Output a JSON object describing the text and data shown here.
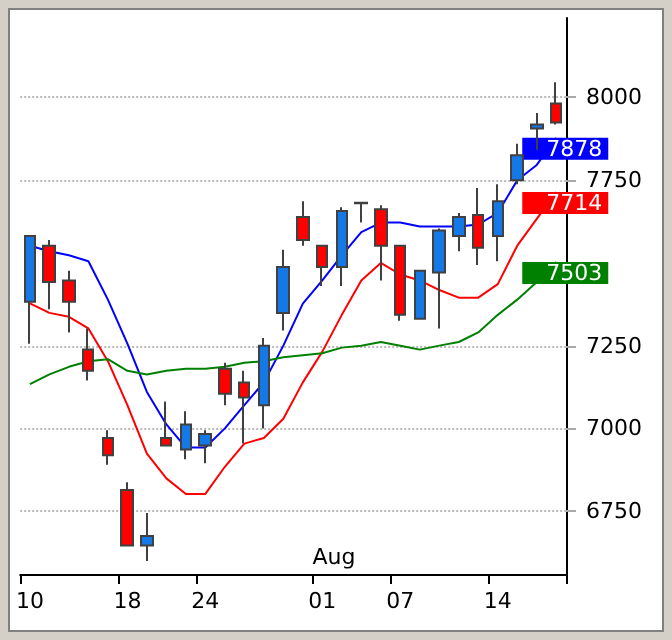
{
  "chart_data": {
    "type": "candlestick",
    "categories": [
      "10",
      null,
      null,
      null,
      null,
      "18",
      null,
      null,
      null,
      "24",
      null,
      null,
      null,
      null,
      null,
      "01",
      null,
      null,
      null,
      "07",
      null,
      null,
      null,
      null,
      "14",
      null,
      null,
      null
    ],
    "ohlc": [
      [
        7383,
        7581,
        7256,
        7581
      ],
      [
        7552,
        7569,
        7360,
        7442
      ],
      [
        7447,
        7476,
        7290,
        7383
      ],
      [
        7238,
        7302,
        7145,
        7174
      ],
      [
        6971,
        6994,
        6890,
        6919
      ],
      [
        6814,
        6837,
        6646,
        6646
      ],
      [
        6646,
        6744,
        6599,
        6675
      ],
      [
        6971,
        7081,
        6948,
        6948
      ],
      [
        6936,
        7052,
        6907,
        7012
      ],
      [
        6948,
        6994,
        6895,
        6983
      ],
      [
        7180,
        7198,
        7070,
        7105
      ],
      [
        7139,
        7174,
        6954,
        7093
      ],
      [
        7070,
        7273,
        7000,
        7250
      ],
      [
        7349,
        7540,
        7296,
        7488
      ],
      [
        7639,
        7686,
        7552,
        7569
      ],
      [
        7552,
        7552,
        7430,
        7488
      ],
      [
        7488,
        7668,
        7430,
        7657
      ],
      [
        7680,
        7682,
        7622,
        7682
      ],
      [
        7662,
        7674,
        7447,
        7552
      ],
      [
        7552,
        7552,
        7325,
        7343
      ],
      [
        7331,
        7476,
        7331,
        7476
      ],
      [
        7471,
        7604,
        7302,
        7598
      ],
      [
        7581,
        7651,
        7535,
        7639
      ],
      [
        7645,
        7726,
        7494,
        7546
      ],
      [
        7581,
        7738,
        7505,
        7686
      ],
      [
        7750,
        7860,
        7738,
        7825
      ],
      [
        7906,
        7953,
        7842,
        7918
      ],
      [
        7982,
        8046,
        7918,
        7924
      ]
    ],
    "colors": [
      "#1478e6",
      "#ff0000",
      "#ff0000",
      "#ff0000",
      "#ff0000",
      "#ff0000",
      "#1478e6",
      "#ff0000",
      "#1478e6",
      "#1478e6",
      "#ff0000",
      "#ff0000",
      "#1478e6",
      "#1478e6",
      "#ff0000",
      "#ff0000",
      "#1478e6",
      "#1478e6",
      "#ff0000",
      "#ff0000",
      "#1478e6",
      "#1478e6",
      "#1478e6",
      "#ff0000",
      "#1478e6",
      "#1478e6",
      "#1478e6",
      "#ff0000"
    ],
    "series": [
      {
        "type": "line",
        "color": "#0000ff",
        "values": [
          7552,
          7535,
          7523,
          7505,
          7389,
          7256,
          7110,
          7012,
          6942,
          6942,
          7000,
          7070,
          7139,
          7250,
          7377,
          7447,
          7523,
          7593,
          7622,
          7622,
          7610,
          7610,
          7610,
          7616,
          7651,
          7750,
          7796,
          7878
        ],
        "value_labels": [
          null,
          null,
          null,
          null,
          null,
          null,
          null,
          null,
          null,
          null,
          null,
          null,
          null,
          null,
          null,
          null,
          null,
          null,
          null,
          null,
          null,
          null,
          null,
          null,
          null,
          null,
          null,
          "7878"
        ]
      },
      {
        "type": "line",
        "color": "#ff0000",
        "values": [
          7378,
          7349,
          7337,
          7302,
          7203,
          7070,
          6924,
          6849,
          6802,
          6802,
          6884,
          6954,
          6971,
          7029,
          7139,
          7232,
          7343,
          7447,
          7500,
          7465,
          7447,
          7418,
          7395,
          7395,
          7436,
          7552,
          7633,
          7714
        ],
        "value_labels": [
          null,
          null,
          null,
          null,
          null,
          null,
          null,
          null,
          null,
          null,
          null,
          null,
          null,
          null,
          null,
          null,
          null,
          null,
          null,
          null,
          null,
          null,
          null,
          null,
          null,
          null,
          null,
          "7714"
        ]
      },
      {
        "type": "line",
        "color": "#008000",
        "values": [
          7134,
          7163,
          7186,
          7203,
          7209,
          7174,
          7163,
          7174,
          7180,
          7180,
          7186,
          7198,
          7203,
          7215,
          7221,
          7227,
          7244,
          7250,
          7261,
          7250,
          7238,
          7250,
          7261,
          7290,
          7343,
          7389,
          7442,
          7503
        ],
        "value_labels": [
          null,
          null,
          null,
          null,
          null,
          null,
          null,
          null,
          null,
          null,
          null,
          null,
          null,
          null,
          null,
          null,
          null,
          null,
          null,
          null,
          null,
          null,
          null,
          null,
          null,
          null,
          null,
          "7503"
        ]
      }
    ],
    "ylim": [
      6560,
      8240
    ],
    "yticks": [
      6750,
      7000,
      7250,
      7750,
      8000
    ],
    "annotations": [
      "Aug"
    ],
    "grid": "y",
    "marker": "none",
    "line_style": "solid"
  }
}
